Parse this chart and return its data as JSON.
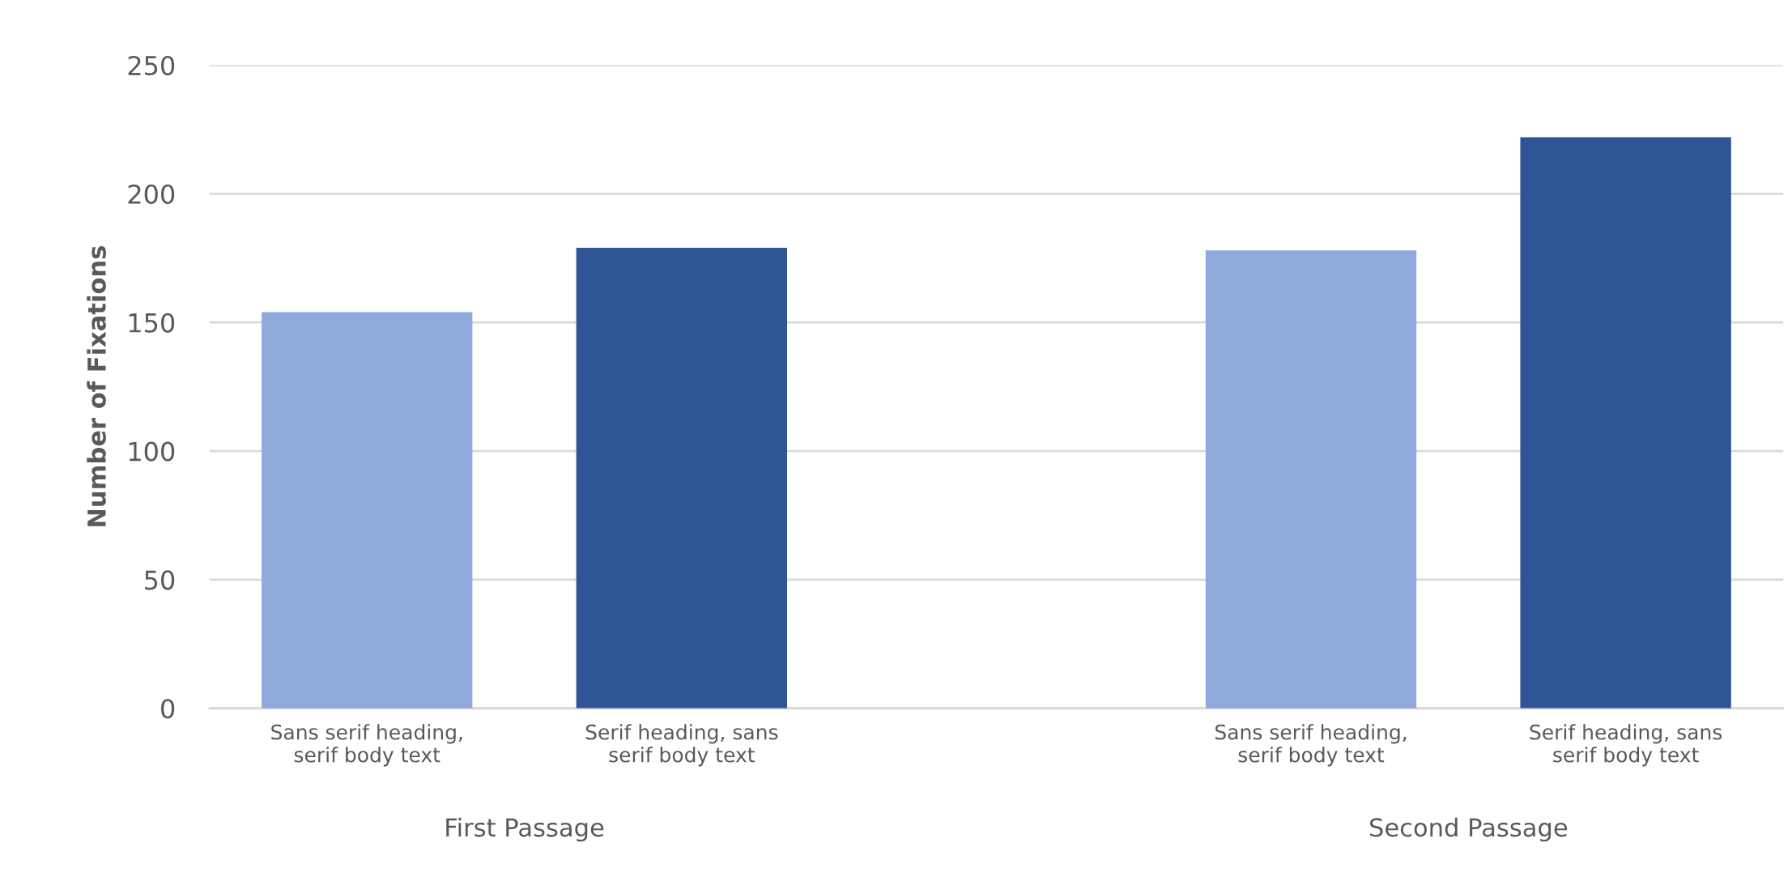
{
  "chart_data": {
    "type": "bar",
    "ylabel": "Number of Fixations",
    "categories": [
      "Sans serif heading,\nserif body text",
      "Serif heading, sans\nserif body text",
      null,
      "Sans serif heading,\nserif body text",
      "Serif heading, sans\nserif body text"
    ],
    "values": [
      154,
      179,
      null,
      178,
      222
    ],
    "colors": [
      "#8faadc",
      "#2f5597",
      null,
      "#8faadc",
      "#2f5597"
    ],
    "ylim": [
      0,
      250
    ],
    "yticks": [
      0,
      50,
      100,
      150,
      200,
      250
    ],
    "grid": "y",
    "annotations": [
      "First Passage",
      "Second Passage"
    ]
  }
}
